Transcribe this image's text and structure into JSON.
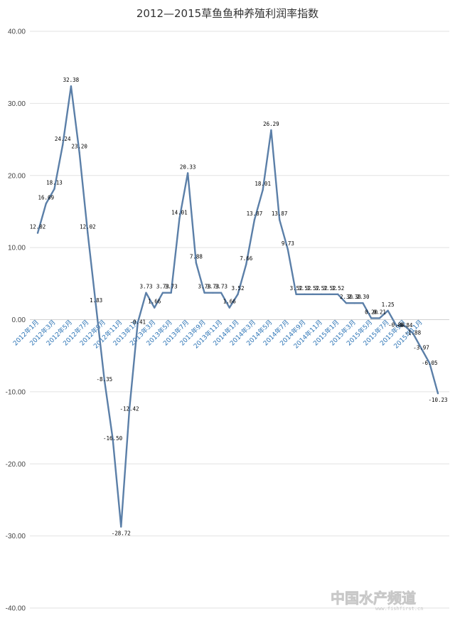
{
  "chart_data": {
    "type": "line",
    "title": "2012—2015草鱼鱼种养殖利润率指数",
    "xlabel": "",
    "ylabel": "",
    "ylim": [
      -40,
      40
    ],
    "yticks": [
      "40.00",
      "30.00",
      "20.00",
      "10.00",
      "0.00",
      "-10.00",
      "-20.00",
      "-30.00",
      "-40.00"
    ],
    "grid": true,
    "legend": "none",
    "series": [
      {
        "name": "草鱼鱼种养殖利润率指数",
        "color": "#5b7fa8",
        "values": [
          12.02,
          16.09,
          18.13,
          24.24,
          32.38,
          23.2,
          12.02,
          1.83,
          -8.35,
          -16.5,
          -28.72,
          -12.42,
          -0.41,
          3.73,
          1.66,
          3.73,
          3.73,
          14.01,
          20.33,
          7.88,
          3.73,
          3.73,
          3.73,
          1.66,
          3.52,
          7.66,
          13.87,
          18.01,
          26.29,
          13.87,
          9.73,
          3.52,
          3.52,
          3.52,
          3.52,
          3.52,
          3.52,
          2.3,
          2.3,
          2.3,
          0.2,
          0.21,
          1.25,
          -0.8,
          -0.84,
          -1.88,
          -3.97,
          -6.05,
          -10.23
        ],
        "labels": [
          "12.02",
          "16.09",
          "18.13",
          "24.24",
          "32.38",
          "23.20",
          "12.02",
          "1.83",
          "-8.35",
          "-16.50",
          "-28.72",
          "-12.42",
          "-0.41",
          "3.73",
          "1.66",
          "3.73",
          "3.73",
          "14.01",
          "20.33",
          "7.88",
          "3.73",
          "3.73",
          "3.73",
          "1.66",
          "3.52",
          "7.66",
          "13.87",
          "18.01",
          "26.29",
          "13.87",
          "9.73",
          "3.52",
          "3.52",
          "3.52",
          "3.52",
          "3.52",
          "3.52",
          "2.30",
          "2.30",
          "2.30",
          "0.20",
          "0.21",
          "1.25",
          "-0.80",
          "-0.84",
          "-1.88",
          "-3.97",
          "-6.05",
          "-10.23"
        ]
      }
    ],
    "x_tick_labels": [
      {
        "index": 0,
        "label": "2012年1月"
      },
      {
        "index": 2,
        "label": "2012年3月"
      },
      {
        "index": 4,
        "label": "2012年5月"
      },
      {
        "index": 6,
        "label": "2012年7月"
      },
      {
        "index": 8,
        "label": "2012年9月"
      },
      {
        "index": 10,
        "label": "2012年11月"
      },
      {
        "index": 12,
        "label": "2013年1月"
      },
      {
        "index": 14,
        "label": "2013年3月"
      },
      {
        "index": 16,
        "label": "2013年5月"
      },
      {
        "index": 18,
        "label": "2013年7月"
      },
      {
        "index": 20,
        "label": "2013年9月"
      },
      {
        "index": 22,
        "label": "2013年11月"
      },
      {
        "index": 24,
        "label": "2014年1月"
      },
      {
        "index": 26,
        "label": "2014年3月"
      },
      {
        "index": 28,
        "label": "2014年5月"
      },
      {
        "index": 30,
        "label": "2014年7月"
      },
      {
        "index": 32,
        "label": "2014年9月"
      },
      {
        "index": 34,
        "label": "2014年11月"
      },
      {
        "index": 36,
        "label": "2015年1月"
      },
      {
        "index": 38,
        "label": "2015年3月"
      },
      {
        "index": 40,
        "label": "2015年5月"
      },
      {
        "index": 42,
        "label": "2015年7月"
      },
      {
        "index": 44,
        "label": "2015年9月"
      },
      {
        "index": 46,
        "label": "2015年11月"
      }
    ]
  },
  "watermark": {
    "text": "中国水产频道",
    "subtext": "www.fishfirst.cn"
  }
}
